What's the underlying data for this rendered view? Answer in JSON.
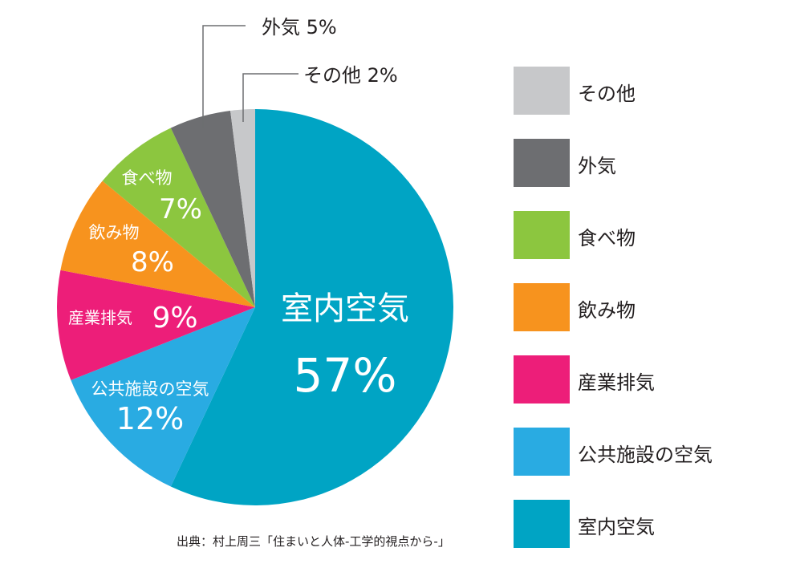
{
  "chart_data": {
    "type": "pie",
    "title": "",
    "start_angle_deg": 0,
    "direction": "clockwise",
    "slices": [
      {
        "label": "室内空気",
        "value": 57,
        "pct_label": "57%",
        "color": "#00a4c4"
      },
      {
        "label": "公共施設の空気",
        "value": 12,
        "pct_label": "12%",
        "color": "#29abe2"
      },
      {
        "label": "産業排気",
        "value": 9,
        "pct_label": "9%",
        "color": "#ed1e79"
      },
      {
        "label": "飲み物",
        "value": 8,
        "pct_label": "8%",
        "color": "#f7931e"
      },
      {
        "label": "食べ物",
        "value": 7,
        "pct_label": "7%",
        "color": "#8cc63f"
      },
      {
        "label": "外気",
        "value": 5,
        "pct_label": "5%",
        "color": "#6d6e71"
      },
      {
        "label": "その他",
        "value": 2,
        "pct_label": "2%",
        "color": "#c7c8ca"
      }
    ],
    "legend_position": "right",
    "legend_order": [
      "その他",
      "外気",
      "食べ物",
      "飲み物",
      "産業排気",
      "公共施設の空気",
      "室内空気"
    ]
  },
  "labels": {
    "indoor": {
      "name": "室内空気",
      "pct": "57%"
    },
    "public": {
      "name": "公共施設の空気",
      "pct": "12%"
    },
    "industrial": {
      "name": "産業排気",
      "pct": "9%"
    },
    "drinks": {
      "name": "飲み物",
      "pct": "8%"
    },
    "food": {
      "name": "食べ物",
      "pct": "7%"
    },
    "outdoor_callout": "外気 5%",
    "other_callout": "その他 2%"
  },
  "legend": [
    {
      "label": "その他",
      "color": "#c7c8ca"
    },
    {
      "label": "外気",
      "color": "#6d6e71"
    },
    {
      "label": "食べ物",
      "color": "#8cc63f"
    },
    {
      "label": "飲み物",
      "color": "#f7931e"
    },
    {
      "label": "産業排気",
      "color": "#ed1e79"
    },
    {
      "label": "公共施設の空気",
      "color": "#29abe2"
    },
    {
      "label": "室内空気",
      "color": "#00a4c4"
    }
  ],
  "source": "出典：村上周三「住まいと人体-工学的視点から-」"
}
